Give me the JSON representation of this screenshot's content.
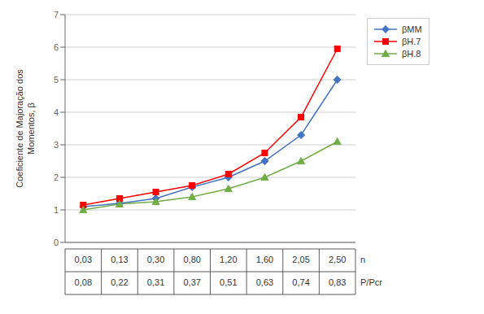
{
  "chart_data": {
    "type": "line",
    "categories": [
      "0,03",
      "0,13",
      "0,30",
      "0,80",
      "1,20",
      "1,60",
      "2,05",
      "2,50"
    ],
    "xlabel": "n",
    "categories2": [
      "0,08",
      "0,22",
      "0,31",
      "0,37",
      "0,51",
      "0,63",
      "0,74",
      "0,83"
    ],
    "xlabel2": "P/Pcr",
    "ylabel": "Coeficiente de Majoração dos\nMomentos, β",
    "ylim": [
      0,
      7
    ],
    "yticks": [
      0,
      1,
      2,
      3,
      4,
      5,
      6,
      7
    ],
    "grid": true,
    "legend": "upper right",
    "series": [
      {
        "name": "βMM",
        "color": "#4472C4",
        "marker": "diamond",
        "values": [
          1.1,
          1.2,
          1.35,
          1.7,
          2.0,
          2.5,
          3.3,
          5.0
        ]
      },
      {
        "name": "βH.7",
        "color": "#FF0000",
        "marker": "square",
        "values": [
          1.15,
          1.35,
          1.55,
          1.75,
          2.1,
          2.75,
          3.85,
          5.95
        ]
      },
      {
        "name": "βH.8",
        "color": "#70AD47",
        "marker": "triangle",
        "values": [
          1.0,
          1.18,
          1.25,
          1.4,
          1.65,
          2.0,
          2.5,
          3.1
        ]
      }
    ]
  }
}
